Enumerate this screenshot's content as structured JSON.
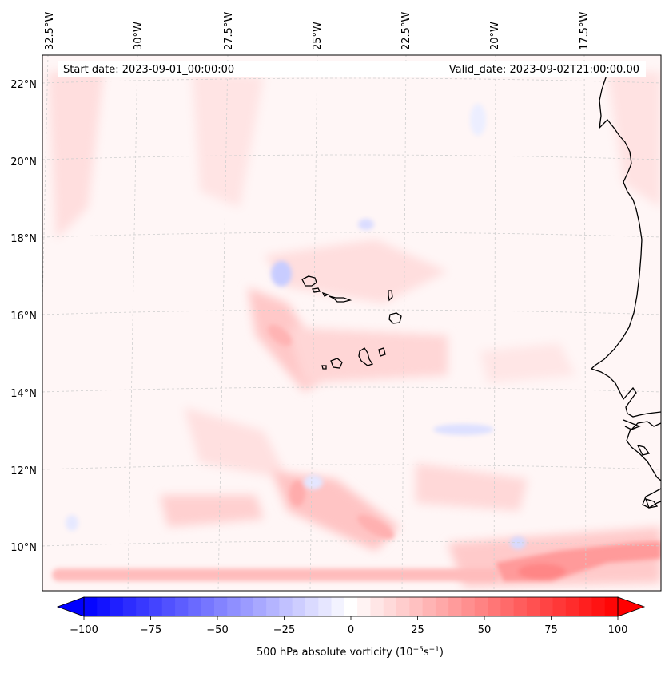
{
  "map": {
    "start_label": "Start date: 2023-09-01_00:00:00",
    "valid_label": "Valid_date: 2023-09-02T21:00:00.00",
    "lon_labels": [
      "32.5°W",
      "30°W",
      "27.5°W",
      "25°W",
      "22.5°W",
      "20°W",
      "17.5°W"
    ],
    "lat_labels": [
      "22°N",
      "20°N",
      "18°N",
      "16°N",
      "14°N",
      "12°N",
      "10°N"
    ],
    "colors": {
      "land_outline": "#000000",
      "grid": "#cfcfcf",
      "positive": "#ff0000",
      "negative": "#0000ff",
      "background": "#fff6f6"
    }
  },
  "colorbar": {
    "title": "500 hPa absolute vorticity (10",
    "title_exp1": "−5",
    "title_mid": "s",
    "title_exp2": "−1",
    "title_end": ")",
    "ticks": [
      "−100",
      "−75",
      "−50",
      "−25",
      "0",
      "25",
      "50",
      "75",
      "100"
    ],
    "min": -100,
    "max": 100,
    "levels": 41
  }
}
